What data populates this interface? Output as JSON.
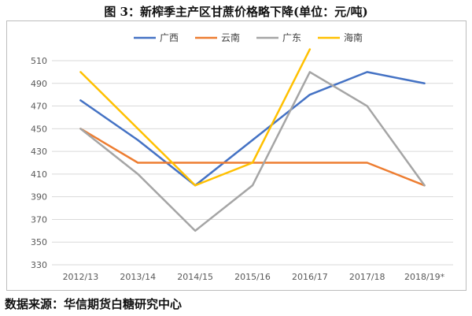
{
  "title": "图 3：新榨季主产区甘蔗价格略下降(单位：元/吨)",
  "source": "数据来源：华信期货白糖研究中心",
  "chart_data": {
    "type": "line",
    "title": "图 3：新榨季主产区甘蔗价格略下降(单位：元/吨)",
    "categories": [
      "2012/13",
      "2013/14",
      "2014/15",
      "2015/16",
      "2016/17",
      "2017/18",
      "2018/19*"
    ],
    "yticks": [
      330,
      350,
      370,
      390,
      410,
      430,
      450,
      470,
      490,
      510
    ],
    "ylim": [
      330,
      510
    ],
    "grid": true,
    "legend_position": "top",
    "series": [
      {
        "name": "广西",
        "color": "#4472C4",
        "values": [
          475,
          440,
          400,
          440,
          480,
          500,
          490
        ]
      },
      {
        "name": "云南",
        "color": "#ED7D31",
        "values": [
          450,
          420,
          420,
          420,
          420,
          420,
          400
        ]
      },
      {
        "name": "广东",
        "color": "#A5A5A5",
        "values": [
          450,
          410,
          360,
          400,
          500,
          470,
          400
        ]
      },
      {
        "name": "海南",
        "color": "#FFC000",
        "values": [
          500,
          450,
          400,
          420,
          520,
          null,
          null
        ]
      }
    ]
  }
}
